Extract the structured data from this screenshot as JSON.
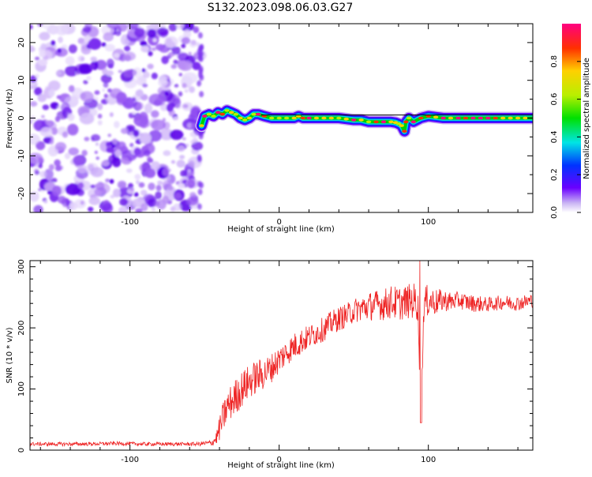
{
  "title": "S132.2023.098.06.03.G27",
  "colors": {
    "snr_line": "#ee2222",
    "track_line": "#000000",
    "noise": "#7a2ff0",
    "axis": "#000000"
  },
  "colorbar": {
    "label": "Normalized spectral amplitude",
    "ticks": [
      "0.0",
      "0.2",
      "0.4",
      "0.6",
      "0.8"
    ],
    "tick_values": [
      0.0,
      0.2,
      0.4,
      0.6,
      0.8
    ],
    "range": [
      0,
      1
    ]
  },
  "chart_data": [
    {
      "type": "heatmap",
      "title": "S132.2023.098.06.03.G27",
      "xlabel": "Height of straight line (km)",
      "ylabel": "Frequency (Hz)",
      "xlim": [
        -167,
        170
      ],
      "ylim": [
        -25,
        25
      ],
      "x_ticks": [
        -100,
        0,
        100
      ],
      "x_tick_labels": [
        "-100",
        "0",
        "100"
      ],
      "y_ticks": [
        -20,
        -10,
        0,
        10,
        20
      ],
      "y_tick_labels": [
        "-20",
        "-10",
        "0",
        "10",
        "20"
      ],
      "noise_region_x": [
        -167,
        -53
      ],
      "signal_start_x": -53,
      "frequency_track": {
        "x": [
          -52,
          -50,
          -47,
          -44,
          -41,
          -38,
          -35,
          -32,
          -29,
          -26,
          -23,
          -20,
          -17,
          -14,
          -10,
          -5,
          0,
          5,
          10,
          13,
          16,
          20,
          30,
          40,
          50,
          55,
          60,
          65,
          70,
          75,
          78,
          80,
          82,
          84,
          85,
          87,
          90,
          95,
          100,
          110,
          120,
          130,
          140,
          150,
          160,
          170
        ],
        "y": [
          -2,
          0.5,
          1,
          0.5,
          1.5,
          1,
          2,
          1.5,
          1,
          0,
          -0.5,
          0,
          1,
          1,
          0.5,
          0,
          0,
          0,
          0,
          0.5,
          0,
          0,
          0,
          0,
          -0.5,
          -0.5,
          -1,
          -1,
          -1,
          -1,
          -1.2,
          -1.5,
          -2,
          -3.5,
          -1,
          0,
          -1,
          0,
          0.5,
          0,
          0,
          0,
          0,
          0,
          0,
          0
        ]
      },
      "fit_line": {
        "x": [
          -12,
          170
        ],
        "y": [
          0.8,
          0.8
        ]
      }
    },
    {
      "type": "line",
      "xlabel": "Height of straight line (km)",
      "ylabel": "SNR (10 * v/v)",
      "xlim": [
        -167,
        170
      ],
      "ylim": [
        0,
        310
      ],
      "x_ticks": [
        -100,
        0,
        100
      ],
      "x_tick_labels": [
        "-100",
        "0",
        "100"
      ],
      "y_ticks": [
        0,
        100,
        200,
        300
      ],
      "y_tick_labels": [
        "0",
        "100",
        "200",
        "300"
      ],
      "series": [
        {
          "x": [
            -167,
            -150,
            -130,
            -110,
            -90,
            -70,
            -55,
            -45,
            -42,
            -40,
            -38,
            -35,
            -30,
            -25,
            -20,
            -15,
            -10,
            -5,
            0,
            5,
            10,
            15,
            20,
            25,
            30,
            35,
            40,
            45,
            50,
            55,
            60,
            65,
            70,
            75,
            80,
            85,
            90,
            93,
            95,
            97,
            100,
            105,
            110,
            115,
            120,
            130,
            140,
            150,
            160,
            170
          ],
          "y": [
            10,
            10,
            10,
            11,
            10,
            10,
            10,
            12,
            20,
            35,
            50,
            70,
            85,
            100,
            112,
            120,
            125,
            135,
            148,
            160,
            170,
            178,
            185,
            192,
            198,
            208,
            215,
            220,
            228,
            232,
            235,
            238,
            238,
            242,
            240,
            242,
            245,
            240,
            45,
            238,
            245,
            242,
            245,
            243,
            245,
            240,
            238,
            242,
            240,
            245
          ],
          "noise_amplitude": [
            3,
            3,
            3,
            3,
            3,
            3,
            3,
            5,
            12,
            20,
            25,
            28,
            30,
            30,
            28,
            28,
            26,
            24,
            24,
            22,
            22,
            22,
            20,
            20,
            20,
            20,
            20,
            20,
            20,
            22,
            24,
            24,
            26,
            28,
            28,
            28,
            30,
            30,
            0,
            30,
            26,
            22,
            18,
            16,
            14,
            14,
            12,
            12,
            12,
            12
          ]
        }
      ]
    }
  ]
}
